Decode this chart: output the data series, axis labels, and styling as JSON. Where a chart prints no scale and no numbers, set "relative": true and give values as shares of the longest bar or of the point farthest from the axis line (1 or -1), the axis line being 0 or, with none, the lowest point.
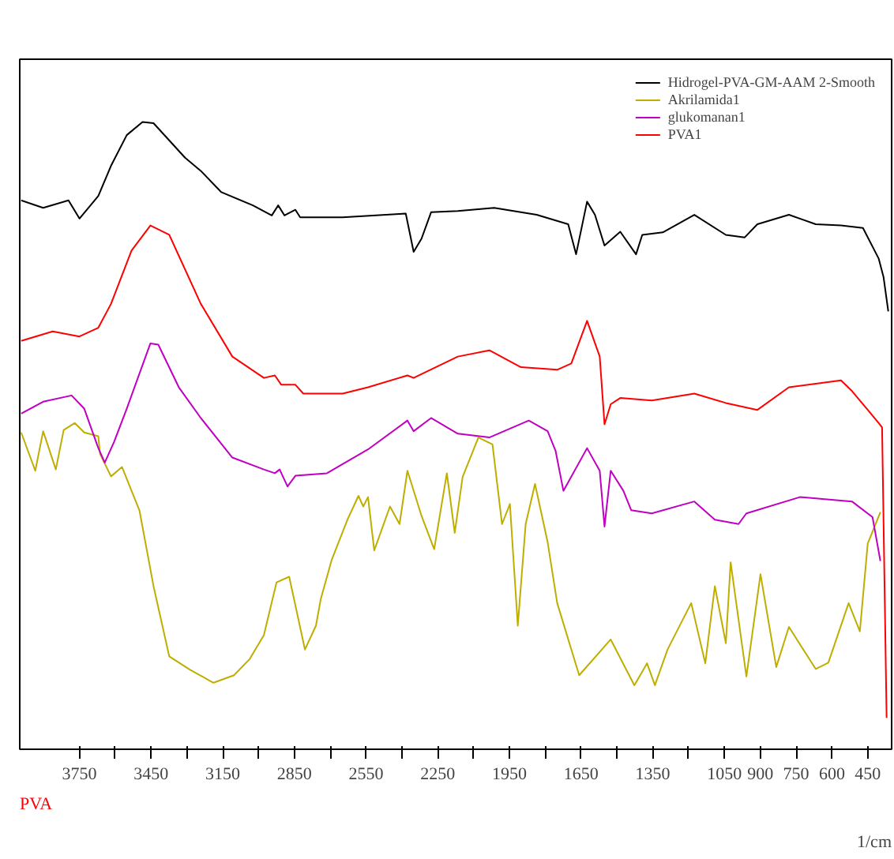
{
  "chart_data": {
    "type": "line",
    "relative": true,
    "xlabel": "1/cm",
    "annotations": [
      "PVA"
    ],
    "xlim": [
      4000,
      350
    ],
    "xticks": [
      3750,
      {
        "value": 3600,
        "label": null
      },
      3450,
      {
        "value": 3300,
        "label": null
      },
      3150,
      {
        "value": 3000,
        "label": null
      },
      2850,
      {
        "value": 2700,
        "label": null
      },
      2550,
      {
        "value": 2400,
        "label": null
      },
      2250,
      {
        "value": 2100,
        "label": null
      },
      1950,
      {
        "value": 1800,
        "label": null
      },
      1650,
      {
        "value": 1500,
        "label": null
      },
      1350,
      {
        "value": 1200,
        "label": null
      },
      1050,
      900,
      750,
      600,
      450
    ],
    "legend": "top right",
    "grid": false,
    "series": [
      {
        "name": "Hidrogel-PVA-GM-AAM 2-Smooth",
        "color": "#000000",
        "x": [
          3994,
          3902,
          3796,
          3750,
          3671,
          3618,
          3552,
          3486,
          3440,
          3308,
          3242,
          3156,
          3024,
          2945,
          2918,
          2892,
          2846,
          2826,
          2648,
          2384,
          2351,
          2318,
          2278,
          2166,
          2014,
          1836,
          1704,
          1671,
          1625,
          1592,
          1552,
          1486,
          1420,
          1394,
          1308,
          1176,
          1044,
          965,
          912,
          780,
          668,
          562,
          470,
          404,
          384,
          364
        ],
        "values": [
          0.875,
          0.863,
          0.875,
          0.846,
          0.882,
          0.93,
          0.979,
          1.0,
          0.998,
          0.943,
          0.922,
          0.888,
          0.867,
          0.851,
          0.867,
          0.851,
          0.86,
          0.848,
          0.848,
          0.854,
          0.793,
          0.814,
          0.856,
          0.858,
          0.863,
          0.852,
          0.837,
          0.789,
          0.873,
          0.852,
          0.803,
          0.825,
          0.789,
          0.82,
          0.824,
          0.852,
          0.82,
          0.816,
          0.837,
          0.852,
          0.837,
          0.835,
          0.831,
          0.782,
          0.753,
          0.698
        ]
      },
      {
        "name": "Akrilamida1",
        "color": "#bfae00",
        "x": [
          3994,
          3935,
          3902,
          3849,
          3816,
          3770,
          3730,
          3671,
          3664,
          3618,
          3572,
          3532,
          3499,
          3440,
          3374,
          3288,
          3189,
          3103,
          3037,
          2978,
          2925,
          2872,
          2806,
          2760,
          2740,
          2694,
          2628,
          2582,
          2562,
          2542,
          2516,
          2450,
          2410,
          2377,
          2318,
          2265,
          2212,
          2179,
          2146,
          2080,
          2021,
          1981,
          1948,
          1915,
          1882,
          1843,
          1790,
          1750,
          1658,
          1526,
          1427,
          1374,
          1341,
          1288,
          1189,
          1130,
          1090,
          1044,
          1024,
          958,
          899,
          833,
          780,
          668,
          615,
          530,
          483,
          450,
          397
        ],
        "values": [
          0.505,
          0.444,
          0.507,
          0.446,
          0.509,
          0.52,
          0.505,
          0.499,
          0.471,
          0.435,
          0.45,
          0.412,
          0.381,
          0.26,
          0.148,
          0.127,
          0.106,
          0.118,
          0.144,
          0.182,
          0.266,
          0.275,
          0.159,
          0.197,
          0.239,
          0.302,
          0.366,
          0.404,
          0.387,
          0.402,
          0.317,
          0.387,
          0.359,
          0.444,
          0.372,
          0.319,
          0.44,
          0.345,
          0.434,
          0.497,
          0.486,
          0.359,
          0.391,
          0.197,
          0.359,
          0.423,
          0.33,
          0.233,
          0.118,
          0.175,
          0.102,
          0.137,
          0.102,
          0.159,
          0.233,
          0.137,
          0.26,
          0.169,
          0.298,
          0.116,
          0.279,
          0.131,
          0.195,
          0.128,
          0.138,
          0.233,
          0.188,
          0.328,
          0.378
        ]
      },
      {
        "name": "glukomanan1",
        "color": "#c000c0",
        "x": [
          3994,
          3902,
          3783,
          3730,
          3671,
          3644,
          3605,
          3552,
          3453,
          3420,
          3334,
          3242,
          3110,
          2978,
          2932,
          2912,
          2879,
          2846,
          2714,
          2542,
          2377,
          2351,
          2278,
          2166,
          2034,
          1869,
          1790,
          1757,
          1724,
          1625,
          1572,
          1552,
          1526,
          1473,
          1440,
          1354,
          1176,
          1090,
          991,
          958,
          734,
          516,
          430,
          397
        ],
        "values": [
          0.535,
          0.554,
          0.564,
          0.543,
          0.48,
          0.457,
          0.49,
          0.543,
          0.647,
          0.645,
          0.577,
          0.528,
          0.465,
          0.446,
          0.44,
          0.446,
          0.419,
          0.436,
          0.44,
          0.478,
          0.524,
          0.507,
          0.528,
          0.503,
          0.497,
          0.524,
          0.507,
          0.476,
          0.412,
          0.48,
          0.444,
          0.355,
          0.444,
          0.412,
          0.381,
          0.376,
          0.395,
          0.366,
          0.359,
          0.376,
          0.402,
          0.395,
          0.37,
          0.3
        ]
      },
      {
        "name": "PVA1",
        "color": "#ff0000",
        "x": [
          3994,
          3862,
          3750,
          3671,
          3618,
          3532,
          3453,
          3374,
          3242,
          3110,
          2978,
          2932,
          2905,
          2846,
          2813,
          2648,
          2542,
          2377,
          2351,
          2166,
          2034,
          1902,
          1750,
          1691,
          1625,
          1572,
          1552,
          1526,
          1486,
          1354,
          1176,
          1044,
          912,
          780,
          562,
          516,
          450,
          404,
          390,
          371
        ],
        "values": [
          0.651,
          0.666,
          0.658,
          0.672,
          0.71,
          0.795,
          0.835,
          0.82,
          0.71,
          0.626,
          0.592,
          0.596,
          0.581,
          0.581,
          0.567,
          0.567,
          0.577,
          0.596,
          0.592,
          0.626,
          0.636,
          0.609,
          0.605,
          0.615,
          0.683,
          0.626,
          0.518,
          0.55,
          0.56,
          0.556,
          0.567,
          0.552,
          0.541,
          0.577,
          0.588,
          0.571,
          0.541,
          0.52,
          0.513,
          0.05
        ]
      }
    ]
  }
}
